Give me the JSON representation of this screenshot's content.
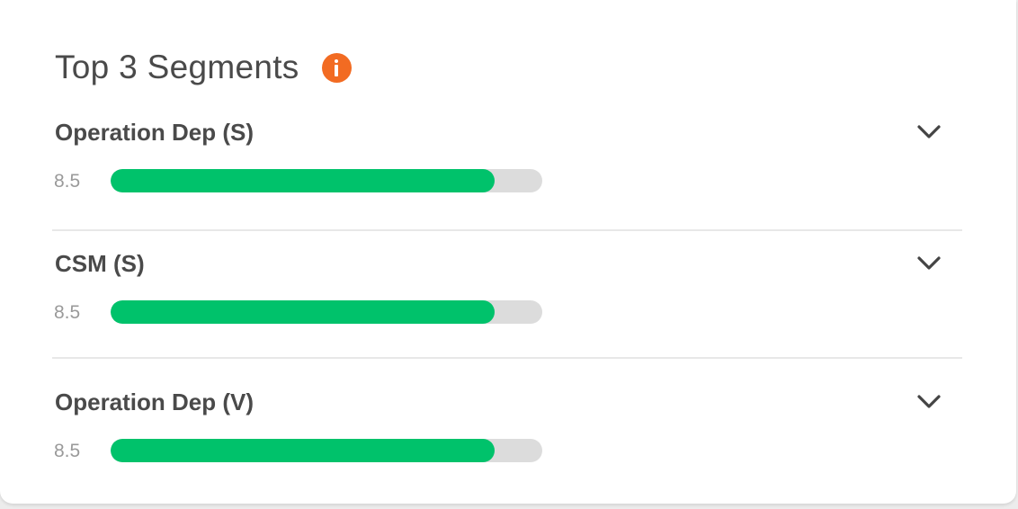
{
  "widget": {
    "title": "Top 3 Segments",
    "info_icon": "info-icon",
    "accent_color": "#f26b22",
    "bar_color": "#00c26b",
    "track_color": "#dcdcdc"
  },
  "segments": [
    {
      "name": "Operation Dep (S)",
      "value": "8.5",
      "fill_fraction": 0.89,
      "expand_icon": "chevron-down-icon"
    },
    {
      "name": "CSM (S)",
      "value": "8.5",
      "fill_fraction": 0.89,
      "expand_icon": "chevron-down-icon"
    },
    {
      "name": "Operation Dep (V)",
      "value": "8.5",
      "fill_fraction": 0.89,
      "expand_icon": "chevron-down-icon"
    }
  ]
}
